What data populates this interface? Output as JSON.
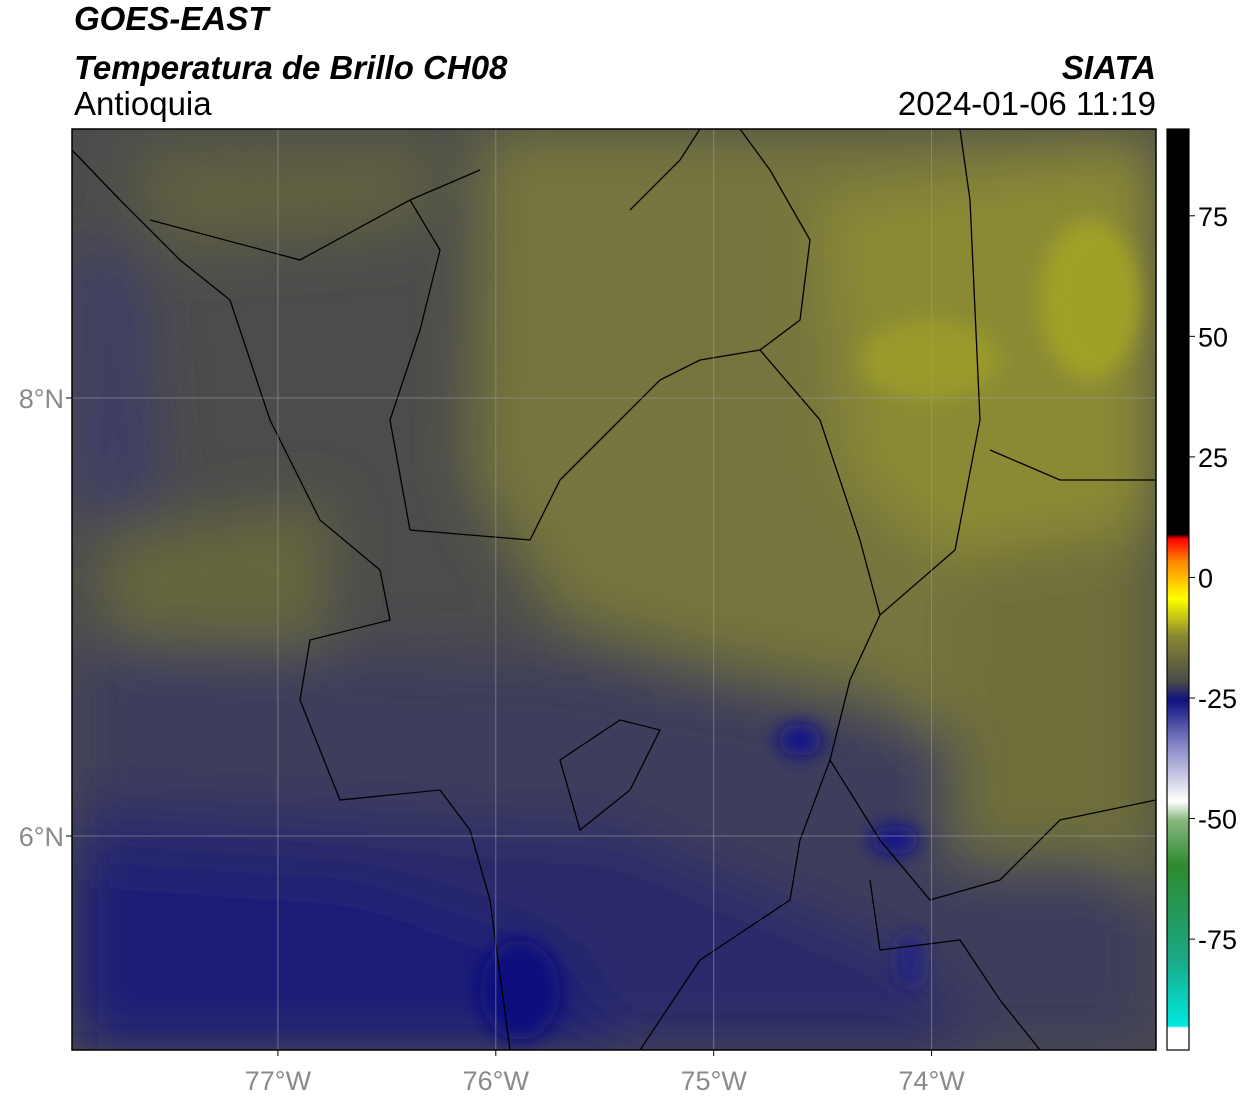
{
  "header": {
    "title": "GOES-EAST",
    "subtitle": "Temperatura de Brillo CH08",
    "region": "Antioquia",
    "source": "SIATA",
    "datetime": "2024-01-06 11:19"
  },
  "map": {
    "xlim": [
      -77.945,
      -72.97
    ],
    "ylim": [
      5.023,
      9.228
    ],
    "xticks": [
      {
        "value": -77,
        "label": "77°W"
      },
      {
        "value": -76,
        "label": "76°W"
      },
      {
        "value": -75,
        "label": "75°W"
      },
      {
        "value": -74,
        "label": "74°W"
      }
    ],
    "yticks": [
      {
        "value": 6,
        "label": "6°N"
      },
      {
        "value": 8,
        "label": "8°N"
      }
    ]
  },
  "colorbar": {
    "lim": [
      -98,
      93
    ],
    "ticks": [
      75,
      50,
      25,
      0,
      -25,
      -50,
      -75
    ]
  }
}
